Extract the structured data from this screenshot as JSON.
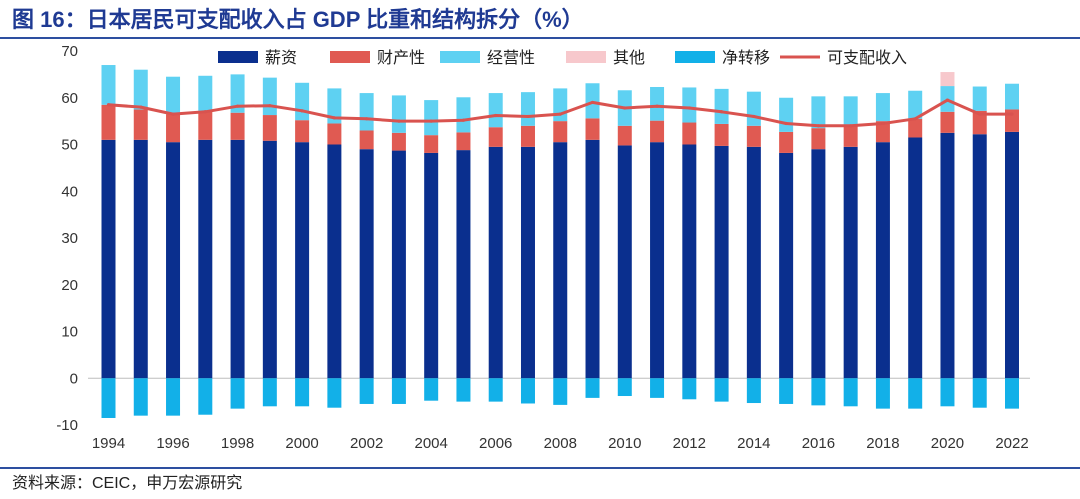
{
  "title": "图 16：日本居民可支配收入占 GDP 比重和结构拆分（%）",
  "source": "资料来源：CEIC，申万宏源研究",
  "colors": {
    "wages": "#0A2F8E",
    "property": "#E05A52",
    "business": "#5ED1F2",
    "other": "#F7C8CC",
    "transfer": "#12B0E8",
    "disposable": "#D9534F",
    "title": "#1F3A93"
  },
  "chart_data": {
    "type": "bar",
    "stacked": true,
    "x": [
      1994,
      1995,
      1996,
      1997,
      1998,
      1999,
      2000,
      2001,
      2002,
      2003,
      2004,
      2005,
      2006,
      2007,
      2008,
      2009,
      2010,
      2011,
      2012,
      2013,
      2014,
      2015,
      2016,
      2017,
      2018,
      2019,
      2020,
      2021,
      2022
    ],
    "xticks": [
      "1994",
      "1996",
      "1998",
      "2000",
      "2002",
      "2004",
      "2006",
      "2008",
      "2010",
      "2012",
      "2014",
      "2016",
      "2018",
      "2020",
      "2022"
    ],
    "yticks": [
      "70",
      "60",
      "50",
      "40",
      "30",
      "20",
      "10",
      "0",
      "-10"
    ],
    "ylim": [
      -10,
      70
    ],
    "legend_position": "top",
    "series": [
      {
        "name": "薪资",
        "kind": "bar",
        "color_key": "wages",
        "values": [
          51.0,
          51.0,
          50.5,
          51.0,
          51.0,
          50.8,
          50.5,
          50.0,
          49.0,
          48.7,
          48.2,
          48.8,
          49.5,
          49.5,
          50.5,
          51.0,
          49.8,
          50.5,
          50.0,
          49.7,
          49.5,
          48.2,
          49.0,
          49.5,
          50.5,
          51.5,
          52.5,
          52.2,
          52.7
        ]
      },
      {
        "name": "财产性",
        "kind": "bar",
        "color_key": "property",
        "values": [
          7.5,
          6.5,
          6.0,
          6.2,
          5.8,
          5.5,
          4.7,
          4.5,
          4.0,
          3.8,
          3.8,
          3.8,
          4.2,
          4.5,
          4.5,
          4.6,
          4.2,
          4.6,
          4.7,
          4.7,
          4.5,
          4.5,
          4.5,
          4.5,
          4.5,
          4.0,
          4.5,
          5.0,
          4.8
        ]
      },
      {
        "name": "经营性",
        "kind": "bar",
        "color_key": "business",
        "values": [
          8.5,
          8.5,
          8.0,
          7.5,
          8.2,
          8.0,
          8.0,
          7.5,
          8.0,
          8.0,
          7.5,
          7.5,
          7.3,
          7.2,
          7.0,
          7.5,
          7.6,
          7.2,
          7.5,
          7.5,
          7.3,
          7.3,
          6.8,
          6.3,
          6.0,
          6.0,
          5.5,
          5.2,
          5.5
        ]
      },
      {
        "name": "其他",
        "kind": "bar",
        "color_key": "other",
        "values": [
          0,
          0,
          0,
          0,
          0,
          0,
          0,
          0,
          0,
          0,
          0,
          0,
          0,
          0,
          0,
          0,
          0,
          0,
          0,
          0,
          0,
          0,
          0,
          0,
          0,
          0,
          3.0,
          0,
          0
        ]
      },
      {
        "name": "净转移",
        "kind": "bar",
        "color_key": "transfer",
        "values": [
          -8.5,
          -8.0,
          -8.0,
          -7.8,
          -6.5,
          -6.0,
          -6.0,
          -6.3,
          -5.5,
          -5.5,
          -4.8,
          -5.0,
          -5.0,
          -5.4,
          -5.7,
          -4.2,
          -3.8,
          -4.2,
          -4.5,
          -5.0,
          -5.3,
          -5.5,
          -5.8,
          -6.0,
          -6.5,
          -6.5,
          -6.0,
          -6.3,
          -6.5
        ]
      },
      {
        "name": "可支配收入",
        "kind": "line",
        "color_key": "disposable",
        "values": [
          58.5,
          58.0,
          56.5,
          57.0,
          58.2,
          58.3,
          57.2,
          55.7,
          55.5,
          55.0,
          55.0,
          55.2,
          56.2,
          56.0,
          56.5,
          59.0,
          57.8,
          58.2,
          57.8,
          57.0,
          56.0,
          54.5,
          54.0,
          54.0,
          54.5,
          55.5,
          59.5,
          56.5,
          56.5
        ]
      }
    ]
  }
}
